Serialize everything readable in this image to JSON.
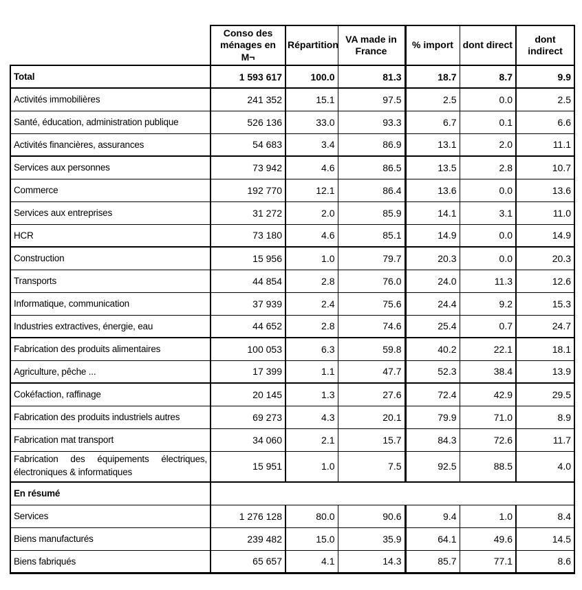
{
  "table": {
    "headers": [
      "Conso des ménages en M¬",
      "Répartition",
      "VA made in France",
      "% import",
      "dont direct",
      "dont indirect"
    ],
    "rows": [
      {
        "label": "Total",
        "values": [
          "1 593 617",
          "100.0",
          "81.3",
          "18.7",
          "8.7",
          "9.9"
        ],
        "total": true
      },
      {
        "label": "Activités immobilières",
        "values": [
          "241 352",
          "15.1",
          "97.5",
          "2.5",
          "0.0",
          "2.5"
        ]
      },
      {
        "label": "Santé, éducation, administration publique",
        "values": [
          "526 136",
          "33.0",
          "93.3",
          "6.7",
          "0.1",
          "6.6"
        ]
      },
      {
        "label": "Activités financières, assurances",
        "values": [
          "54 683",
          "3.4",
          "86.9",
          "13.1",
          "2.0",
          "11.1"
        ],
        "thick_bottom": true
      },
      {
        "label": "Services aux personnes",
        "values": [
          "73 942",
          "4.6",
          "86.5",
          "13.5",
          "2.8",
          "10.7"
        ]
      },
      {
        "label": "Commerce",
        "values": [
          "192 770",
          "12.1",
          "86.4",
          "13.6",
          "0.0",
          "13.6"
        ]
      },
      {
        "label": "Services aux entreprises",
        "values": [
          "31 272",
          "2.0",
          "85.9",
          "14.1",
          "3.1",
          "11.0"
        ]
      },
      {
        "label": "HCR",
        "values": [
          "73 180",
          "4.6",
          "85.1",
          "14.9",
          "0.0",
          "14.9"
        ],
        "thick_bottom": true
      },
      {
        "label": "Construction",
        "values": [
          "15 956",
          "1.0",
          "79.7",
          "20.3",
          "0.0",
          "20.3"
        ]
      },
      {
        "label": "Transports",
        "values": [
          "44 854",
          "2.8",
          "76.0",
          "24.0",
          "11.3",
          "12.6"
        ]
      },
      {
        "label": "Informatique, communication",
        "values": [
          "37 939",
          "2.4",
          "75.6",
          "24.4",
          "9.2",
          "15.3"
        ]
      },
      {
        "label": "Industries extractives, énergie, eau",
        "values": [
          "44 652",
          "2.8",
          "74.6",
          "25.4",
          "0.7",
          "24.7"
        ],
        "thick_bottom": true
      },
      {
        "label": "Fabrication des produits alimentaires",
        "values": [
          "100 053",
          "6.3",
          "59.8",
          "40.2",
          "22.1",
          "18.1"
        ]
      },
      {
        "label": "Agriculture, pêche ...",
        "values": [
          "17 399",
          "1.1",
          "47.7",
          "52.3",
          "38.4",
          "13.9"
        ],
        "thick_bottom": true
      },
      {
        "label": "Cokéfaction, raffinage",
        "values": [
          "20 145",
          "1.3",
          "27.6",
          "72.4",
          "42.9",
          "29.5"
        ]
      },
      {
        "label": "Fabrication des produits industriels autres",
        "values": [
          "69 273",
          "4.3",
          "20.1",
          "79.9",
          "71.0",
          "8.9"
        ]
      },
      {
        "label": "Fabrication mat transport",
        "values": [
          "34 060",
          "2.1",
          "15.7",
          "84.3",
          "72.6",
          "11.7"
        ]
      },
      {
        "label": "Fabrication des équipements électriques, électroniques & informatiques",
        "label_lines": [
          "Fabrication des équipements électriques,",
          "électroniques & informatiques"
        ],
        "values": [
          "15 951",
          "1.0",
          "7.5",
          "92.5",
          "88.5",
          "4.0"
        ],
        "thick_bottom": true,
        "two_line": true
      },
      {
        "label": "En résumé",
        "section": true,
        "bold": true
      },
      {
        "label": "Services",
        "values": [
          "1 276 128",
          "80.0",
          "90.6",
          "9.4",
          "1.0",
          "8.4"
        ]
      },
      {
        "label": "Biens manufacturés",
        "values": [
          "239 482",
          "15.0",
          "35.9",
          "64.1",
          "49.6",
          "14.5"
        ]
      },
      {
        "label": "Biens fabriqués",
        "values": [
          "65 657",
          "4.1",
          "14.3",
          "85.7",
          "77.1",
          "8.6"
        ],
        "last": true
      }
    ],
    "colors": {
      "border": "#000000",
      "text": "#000000",
      "background": "#ffffff"
    }
  }
}
